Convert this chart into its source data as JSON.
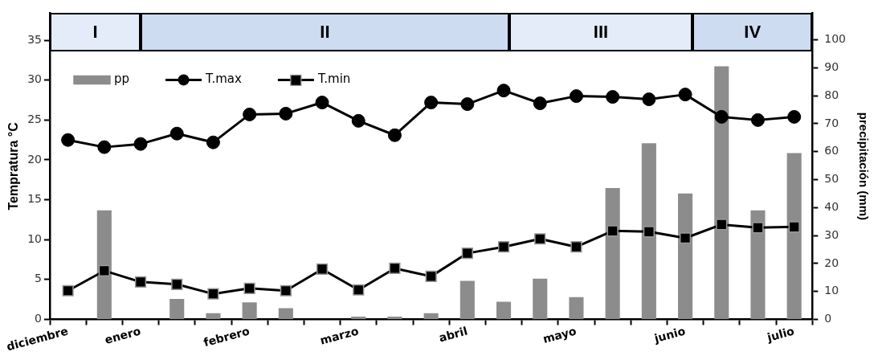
{
  "chart_data": {
    "type": "line",
    "ylabel": "Tempratura °C",
    "y2label": "precipitación (mm)",
    "categories": [
      "diciembre",
      null,
      "enero",
      null,
      null,
      "febrero",
      null,
      null,
      "marzo",
      null,
      null,
      "abril",
      null,
      null,
      "mayo",
      null,
      null,
      "junio",
      null,
      null,
      "julio"
    ],
    "ylim": [
      0,
      38.4
    ],
    "yticks": [
      0,
      5,
      10,
      15,
      20,
      25,
      30,
      35
    ],
    "y2lim": [
      0,
      109.5
    ],
    "y2ticks": [
      0,
      10,
      20,
      30,
      40,
      50,
      60,
      70,
      80,
      90,
      100
    ],
    "series": [
      {
        "name": "pp",
        "type": "bar",
        "axis": "y2",
        "color": "#8c8c8c",
        "values": [
          null,
          39,
          null,
          7.3,
          2.2,
          6.1,
          4,
          null,
          1,
          1,
          2.2,
          13.8,
          6.3,
          14.6,
          8,
          47,
          63,
          45,
          90.5,
          39,
          59.5
        ]
      },
      {
        "name": "T.max",
        "marker": "circle",
        "color": "#000000",
        "values": [
          22.5,
          21.6,
          22.0,
          23.3,
          22.2,
          25.7,
          25.8,
          27.2,
          24.9,
          23.1,
          27.2,
          27.0,
          28.7,
          27.1,
          28.0,
          27.9,
          27.6,
          28.2,
          25.4,
          25.0,
          25.4
        ]
      },
      {
        "name": "T.min",
        "marker": "square",
        "color": "#000000",
        "values": [
          3.6,
          6.1,
          4.7,
          4.4,
          3.2,
          3.9,
          3.6,
          6.3,
          3.7,
          6.4,
          5.4,
          8.3,
          9.1,
          10.1,
          9.1,
          11.1,
          11.0,
          10.2,
          11.9,
          11.5,
          11.6
        ]
      }
    ],
    "annotations": [
      "I",
      "II",
      "III",
      "IV"
    ],
    "legend": "top left",
    "grid": false
  }
}
